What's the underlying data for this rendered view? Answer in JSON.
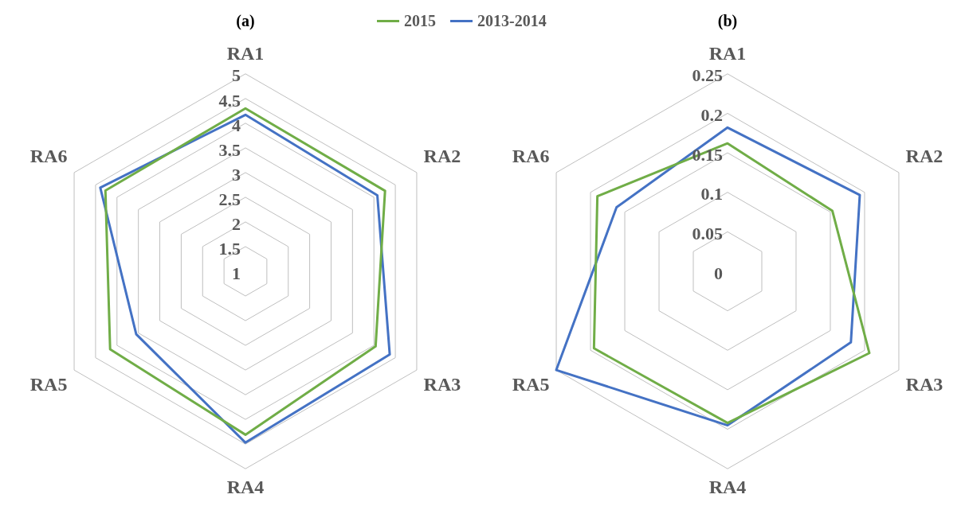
{
  "chart_data": [
    {
      "type": "radar",
      "title": "(a)",
      "categories": [
        "RA1",
        "RA2",
        "RA3",
        "RA4",
        "RA5",
        "RA6"
      ],
      "series": [
        {
          "name": "2015",
          "color": "#70ad47",
          "values": [
            4.3,
            4.26,
            4.04,
            4.31,
            4.16,
            4.27
          ]
        },
        {
          "name": "2013-2014",
          "color": "#4472c4",
          "values": [
            4.17,
            4.08,
            4.37,
            4.47,
            3.55,
            4.39
          ]
        }
      ],
      "ylim": [
        1,
        5
      ],
      "yticks": [
        1,
        1.5,
        2,
        2.5,
        3,
        3.5,
        4,
        4.5,
        5
      ],
      "grid": true,
      "legend": "top right",
      "marker": "none"
    },
    {
      "type": "radar",
      "title": "(b)",
      "categories": [
        "RA1",
        "RA2",
        "RA3",
        "RA4",
        "RA5",
        "RA6"
      ],
      "series": [
        {
          "color": "#70ad47",
          "values": [
            0.162,
            0.153,
            0.207,
            0.192,
            0.195,
            0.19
          ]
        },
        {
          "color": "#4472c4",
          "values": [
            0.182,
            0.193,
            0.18,
            0.195,
            0.25,
            0.162
          ]
        }
      ],
      "ylim": [
        0,
        0.25
      ],
      "yticks": [
        0,
        0.05,
        0.1,
        0.15,
        0.2,
        0.25
      ],
      "grid": true,
      "marker": "none"
    }
  ]
}
